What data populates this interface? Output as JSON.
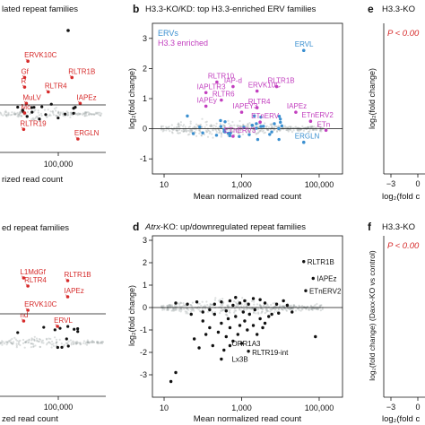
{
  "colors": {
    "red": "#d62a2a",
    "blue": "#3a8fd0",
    "magenta": "#c23fbf",
    "black": "#111111",
    "grey": "#9aa3a3"
  },
  "chart_data": [
    {
      "id": "a",
      "type": "scatter",
      "panel_label": "",
      "title": "lated repeat families",
      "xlabel": "rized read count",
      "ylabel": "",
      "xscale": "log",
      "xticks": [
        "100,000"
      ],
      "ylim": [
        -2,
        5
      ],
      "labels": [
        {
          "text": "ERVK10C",
          "x": 2000,
          "y": 2.75,
          "color": "red"
        },
        {
          "text": "RLTR1B",
          "x": 40000,
          "y": 1.9,
          "color": "red"
        },
        {
          "text": "RLTR4",
          "x": 8000,
          "y": 1.15,
          "color": "red"
        },
        {
          "text": "IAPEz",
          "x": 70000,
          "y": 0.55,
          "color": "red"
        },
        {
          "text": "ERGLN",
          "x": 60000,
          "y": -1.3,
          "color": "red"
        },
        {
          "text": "RLTR19",
          "x": 1500,
          "y": -0.8,
          "color": "red"
        },
        {
          "text": "MuLV",
          "x": 1800,
          "y": 0.55,
          "color": "red"
        },
        {
          "text": "Gf",
          "x": 1600,
          "y": 1.9,
          "color": "red"
        },
        {
          "text": "R",
          "x": 1600,
          "y": 1.4,
          "color": "red"
        },
        {
          "text": "Mc",
          "x": 1600,
          "y": 0.05,
          "color": "red"
        }
      ]
    },
    {
      "id": "b",
      "type": "scatter",
      "panel_label": "b",
      "title": "H3.3-KO/KD: top H3.3-enriched ERV families",
      "xlabel": "Mean normalized read count",
      "ylabel": "log₂(fold change)",
      "xscale": "log",
      "xlim": [
        5,
        400000
      ],
      "xticks": [
        "10",
        "1,000",
        "100,000"
      ],
      "ylim": [
        -1.5,
        3.5
      ],
      "yticks": [
        "-1",
        "0",
        "1",
        "2",
        "3"
      ],
      "legend": [
        {
          "name": "ERVs",
          "color": "blue"
        },
        {
          "name": "H3.3 enriched",
          "color": "magenta"
        }
      ],
      "labels": [
        {
          "text": "ERVL",
          "x": 40000,
          "y": 2.6,
          "color": "blue"
        },
        {
          "text": "ERGLN",
          "x": 40000,
          "y": -0.45,
          "color": "blue"
        },
        {
          "text": "RLTR10",
          "x": 230,
          "y": 1.55,
          "color": "magenta"
        },
        {
          "text": "IAP-d",
          "x": 600,
          "y": 1.4,
          "color": "magenta"
        },
        {
          "text": "RLTR1B",
          "x": 8000,
          "y": 1.4,
          "color": "magenta"
        },
        {
          "text": "IAPLTR3",
          "x": 120,
          "y": 1.2,
          "color": "magenta"
        },
        {
          "text": "ERVK10C",
          "x": 2500,
          "y": 1.25,
          "color": "magenta"
        },
        {
          "text": "RLTR6",
          "x": 300,
          "y": 0.95,
          "color": "magenta"
        },
        {
          "text": "IAPEy",
          "x": 120,
          "y": 0.75,
          "color": "magenta"
        },
        {
          "text": "RLTR4",
          "x": 2500,
          "y": 0.7,
          "color": "magenta"
        },
        {
          "text": "IAPEY3",
          "x": 1000,
          "y": 0.55,
          "color": "magenta"
        },
        {
          "text": "IAPEz",
          "x": 25000,
          "y": 0.55,
          "color": "magenta"
        },
        {
          "text": "ETnERV",
          "x": 3000,
          "y": 0.22,
          "color": "magenta"
        },
        {
          "text": "ETnERV2",
          "x": 60000,
          "y": 0.25,
          "color": "magenta"
        },
        {
          "text": "ETnERV3",
          "x": 600,
          "y": -0.25,
          "color": "magenta"
        },
        {
          "text": "ETn",
          "x": 150000,
          "y": -0.05,
          "color": "magenta"
        }
      ]
    },
    {
      "id": "c",
      "type": "scatter",
      "panel_label": "",
      "title": "ed repeat families",
      "xlabel": "zed read count",
      "ylabel": "",
      "xscale": "log",
      "xticks": [
        "100,000"
      ],
      "ylim": [
        -2,
        4
      ],
      "labels": [
        {
          "text": "L1MdGf",
          "x": 1500,
          "y": 2.4,
          "color": "red"
        },
        {
          "text": "RLTR1B",
          "x": 30000,
          "y": 2.3,
          "color": "red"
        },
        {
          "text": "RLTR4",
          "x": 2000,
          "y": 2.1,
          "color": "red"
        },
        {
          "text": "IAPEz",
          "x": 30000,
          "y": 1.7,
          "color": "red"
        },
        {
          "text": "ERVK10C",
          "x": 2000,
          "y": 1.2,
          "color": "red"
        },
        {
          "text": "ERVL",
          "x": 15000,
          "y": 0.6,
          "color": "red"
        },
        {
          "text": "nd",
          "x": 1500,
          "y": 0.8,
          "color": "red"
        }
      ]
    },
    {
      "id": "d",
      "type": "scatter",
      "panel_label": "d",
      "title_italic": "Atrx",
      "title": "-KO: up/downregulated repeat families",
      "xlabel": "Mean normalized read count",
      "ylabel": "log₂(fold change)",
      "xscale": "log",
      "xlim": [
        5,
        400000
      ],
      "xticks": [
        "10",
        "1,000",
        "100,000"
      ],
      "ylim": [
        -4,
        3.2
      ],
      "yticks": [
        "-3",
        "-2",
        "-1",
        "0",
        "1",
        "2",
        "3"
      ],
      "labels": [
        {
          "text": "RLTR1B",
          "x": 40000,
          "y": 2.05,
          "color": "black"
        },
        {
          "text": "IAPEz",
          "x": 70000,
          "y": 1.3,
          "color": "black"
        },
        {
          "text": "ETnERV2",
          "x": 45000,
          "y": 0.75,
          "color": "black"
        },
        {
          "text": "ORR1A3",
          "x": 450,
          "y": -1.6,
          "color": "black"
        },
        {
          "text": "RLTR19-int",
          "x": 1500,
          "y": -2.0,
          "color": "black"
        },
        {
          "text": "Lx3B",
          "x": 450,
          "y": -2.3,
          "color": "black"
        }
      ],
      "points": [
        [
          15,
          -3.3
        ],
        [
          20,
          -2.9
        ],
        [
          60,
          -1.4
        ],
        [
          80,
          -1.8
        ],
        [
          100,
          -0.6
        ],
        [
          120,
          -1.2
        ],
        [
          150,
          -0.9
        ],
        [
          180,
          -1.7
        ],
        [
          200,
          -0.3
        ],
        [
          250,
          -1.1
        ],
        [
          300,
          -0.7
        ],
        [
          350,
          -1.9
        ],
        [
          400,
          -1.3
        ],
        [
          450,
          -0.5
        ],
        [
          500,
          -0.9
        ],
        [
          600,
          -1.5
        ],
        [
          700,
          -0.4
        ],
        [
          800,
          -1.2
        ],
        [
          900,
          -0.8
        ],
        [
          1000,
          -1.6
        ],
        [
          1200,
          -0.6
        ],
        [
          1400,
          -1.0
        ],
        [
          1600,
          -0.3
        ],
        [
          2000,
          -0.8
        ],
        [
          2500,
          -1.2
        ],
        [
          3000,
          -0.5
        ],
        [
          3500,
          -0.9
        ],
        [
          4000,
          -0.7
        ],
        [
          5000,
          -0.4
        ],
        [
          6000,
          -0.3
        ],
        [
          100,
          -0.2
        ],
        [
          200,
          0.15
        ],
        [
          300,
          0.25
        ],
        [
          150,
          -0.1
        ],
        [
          400,
          -0.15
        ],
        [
          600,
          0.1
        ],
        [
          900,
          0.2
        ],
        [
          1200,
          0.3
        ],
        [
          2000,
          0.4
        ],
        [
          3000,
          0.35
        ],
        [
          4000,
          0.2
        ],
        [
          8000,
          0.15
        ],
        [
          12000,
          0.3
        ],
        [
          20000,
          -0.2
        ],
        [
          80000,
          -1.3
        ],
        [
          40000,
          2.05
        ],
        [
          70000,
          1.3
        ],
        [
          45000,
          0.75
        ],
        [
          300,
          -2.3
        ],
        [
          1500,
          -1.95
        ],
        [
          500,
          -1.7
        ],
        [
          20,
          0.2
        ],
        [
          40,
          0.15
        ],
        [
          50,
          -0.3
        ],
        [
          70,
          0.25
        ],
        [
          500,
          0.3
        ],
        [
          700,
          0.45
        ],
        [
          1100,
          -0.2
        ],
        [
          1500,
          0.15
        ],
        [
          2200,
          -0.1
        ],
        [
          9000,
          -0.25
        ],
        [
          15000,
          0.1
        ]
      ]
    },
    {
      "id": "e",
      "type": "scatter",
      "panel_label": "e",
      "title": "H3.3-KO",
      "stat": "P < 0.00",
      "xlabel": "log₂(fold c",
      "ylabel": "log₂(fold change)",
      "xticks": [
        "−3",
        "0"
      ]
    },
    {
      "id": "f",
      "type": "scatter",
      "panel_label": "f",
      "title": "H3.3-KO",
      "stat": "P < 0.00",
      "xlabel": "log₂(fold c",
      "ylabel": "log₂(fold change) (Daxx-KO vs control)",
      "xticks": [
        "−3",
        "0"
      ]
    }
  ]
}
